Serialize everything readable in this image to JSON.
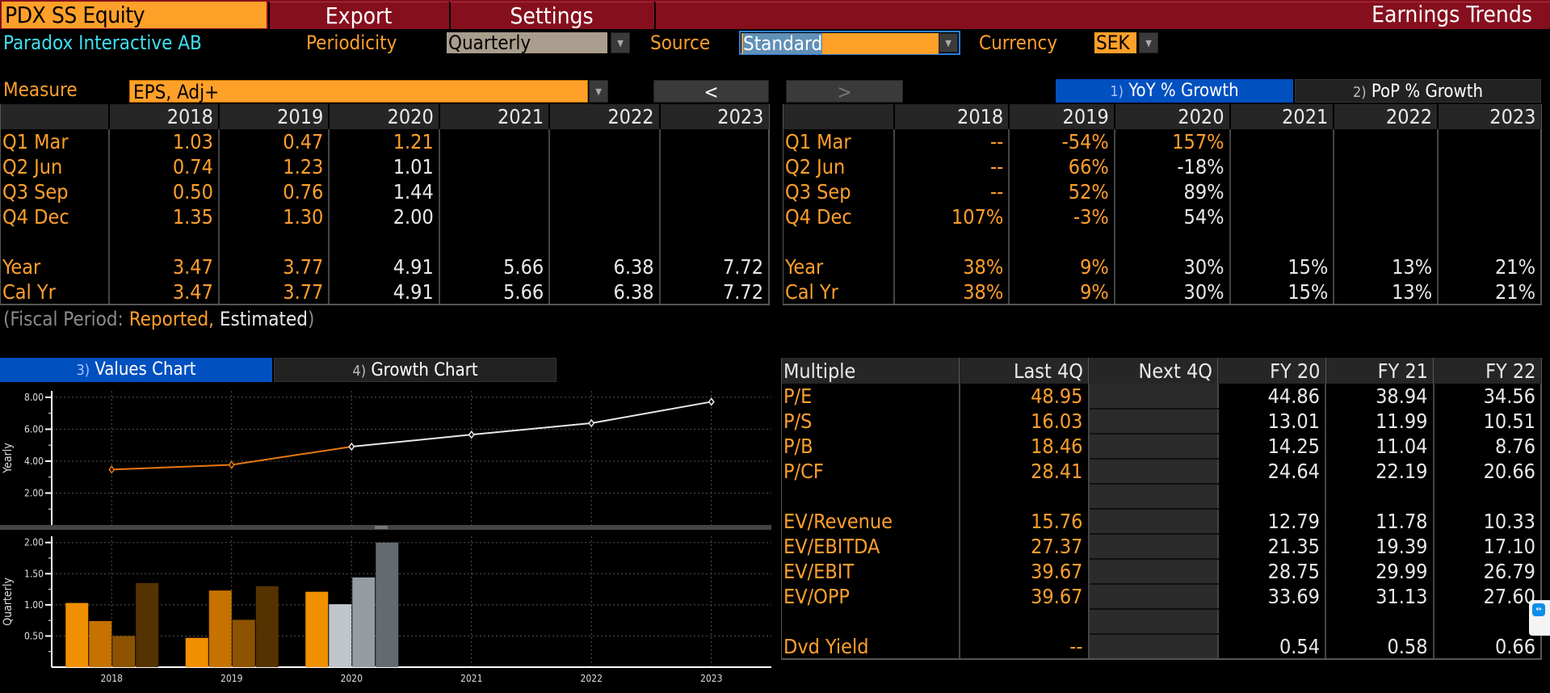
{
  "topbar": {
    "ticker": "PDX SS Equity",
    "export_label": "Export",
    "settings_label": "Settings",
    "app_title": "Earnings Trends"
  },
  "filters": {
    "company": "Paradox Interactive AB",
    "periodicity_label": "Periodicity",
    "periodicity_value": "Quarterly",
    "source_label": "Source",
    "source_value": "Standard",
    "currency_label": "Currency",
    "currency_value": "SEK",
    "dropdown_arrow": "▼"
  },
  "measure": {
    "label": "Measure",
    "value": "EPS, Adj+",
    "prev_label": "<",
    "next_label": ">"
  },
  "growth_tabs": [
    {
      "num": "1)",
      "label": "YoY % Growth",
      "active": true
    },
    {
      "num": "2)",
      "label": "PoP % Growth",
      "active": false
    }
  ],
  "values_table": {
    "years": [
      "2018",
      "2019",
      "2020",
      "2021",
      "2022",
      "2023"
    ],
    "rows": [
      {
        "label": "Q1 Mar",
        "cells": [
          "1.03",
          "0.47",
          "1.21",
          "",
          "",
          ""
        ],
        "styles": [
          "or",
          "or",
          "or",
          "",
          "",
          ""
        ]
      },
      {
        "label": "Q2 Jun",
        "cells": [
          "0.74",
          "1.23",
          "1.01",
          "",
          "",
          ""
        ],
        "styles": [
          "or",
          "or",
          "wh",
          "",
          "",
          ""
        ]
      },
      {
        "label": "Q3 Sep",
        "cells": [
          "0.50",
          "0.76",
          "1.44",
          "",
          "",
          ""
        ],
        "styles": [
          "or",
          "or",
          "wh",
          "",
          "",
          ""
        ]
      },
      {
        "label": "Q4 Dec",
        "cells": [
          "1.35",
          "1.30",
          "2.00",
          "",
          "",
          ""
        ],
        "styles": [
          "or",
          "or",
          "wh",
          "",
          "",
          ""
        ]
      },
      {
        "label": "",
        "cells": [
          "",
          "",
          "",
          "",
          "",
          ""
        ],
        "styles": [
          "",
          "",
          "",
          "",
          "",
          ""
        ]
      },
      {
        "label": "Year",
        "cells": [
          "3.47",
          "3.77",
          "4.91",
          "5.66",
          "6.38",
          "7.72"
        ],
        "styles": [
          "or",
          "or",
          "wh",
          "wh",
          "wh",
          "wh"
        ]
      },
      {
        "label": "Cal Yr",
        "cells": [
          "3.47",
          "3.77",
          "4.91",
          "5.66",
          "6.38",
          "7.72"
        ],
        "styles": [
          "or",
          "or",
          "wh",
          "wh",
          "wh",
          "wh"
        ]
      }
    ]
  },
  "growth_table": {
    "years": [
      "2018",
      "2019",
      "2020",
      "2021",
      "2022",
      "2023"
    ],
    "rows": [
      {
        "label": "Q1 Mar",
        "cells": [
          "--",
          "-54%",
          "157%",
          "",
          "",
          ""
        ],
        "styles": [
          "or",
          "or",
          "or",
          "",
          "",
          ""
        ]
      },
      {
        "label": "Q2 Jun",
        "cells": [
          "--",
          "66%",
          "-18%",
          "",
          "",
          ""
        ],
        "styles": [
          "or",
          "or",
          "wh",
          "",
          "",
          ""
        ]
      },
      {
        "label": "Q3 Sep",
        "cells": [
          "--",
          "52%",
          "89%",
          "",
          "",
          ""
        ],
        "styles": [
          "or",
          "or",
          "wh",
          "",
          "",
          ""
        ]
      },
      {
        "label": "Q4 Dec",
        "cells": [
          "107%",
          "-3%",
          "54%",
          "",
          "",
          ""
        ],
        "styles": [
          "or",
          "or",
          "wh",
          "",
          "",
          ""
        ]
      },
      {
        "label": "",
        "cells": [
          "",
          "",
          "",
          "",
          "",
          ""
        ],
        "styles": [
          "",
          "",
          "",
          "",
          "",
          ""
        ]
      },
      {
        "label": "Year",
        "cells": [
          "38%",
          "9%",
          "30%",
          "15%",
          "13%",
          "21%"
        ],
        "styles": [
          "or",
          "or",
          "wh",
          "wh",
          "wh",
          "wh"
        ]
      },
      {
        "label": "Cal Yr",
        "cells": [
          "38%",
          "9%",
          "30%",
          "15%",
          "13%",
          "21%"
        ],
        "styles": [
          "or",
          "or",
          "wh",
          "wh",
          "wh",
          "wh"
        ]
      }
    ]
  },
  "fiscal_note": {
    "open": "(Fiscal Period: ",
    "reported": "Reported,",
    "estimated": " Estimated",
    "close": ")"
  },
  "chart_tabs": [
    {
      "num": "3)",
      "label": "Values Chart",
      "active": true
    },
    {
      "num": "4)",
      "label": "Growth Chart",
      "active": false
    }
  ],
  "multiples": {
    "headers": [
      "Multiple",
      "Last 4Q",
      "Next 4Q",
      "FY 20",
      "FY 21",
      "FY 22"
    ],
    "rows": [
      {
        "name": "P/E",
        "last4q": "48.95",
        "next4q": "",
        "fy": [
          "44.86",
          "38.94",
          "34.56"
        ]
      },
      {
        "name": "P/S",
        "last4q": "16.03",
        "next4q": "",
        "fy": [
          "13.01",
          "11.99",
          "10.51"
        ]
      },
      {
        "name": "P/B",
        "last4q": "18.46",
        "next4q": "",
        "fy": [
          "14.25",
          "11.04",
          "8.76"
        ]
      },
      {
        "name": "P/CF",
        "last4q": "28.41",
        "next4q": "",
        "fy": [
          "24.64",
          "22.19",
          "20.66"
        ]
      },
      {
        "name": "",
        "last4q": "",
        "next4q": "",
        "fy": [
          "",
          "",
          ""
        ]
      },
      {
        "name": "EV/Revenue",
        "last4q": "15.76",
        "next4q": "",
        "fy": [
          "12.79",
          "11.78",
          "10.33"
        ]
      },
      {
        "name": "EV/EBITDA",
        "last4q": "27.37",
        "next4q": "",
        "fy": [
          "21.35",
          "19.39",
          "17.10"
        ]
      },
      {
        "name": "EV/EBIT",
        "last4q": "39.67",
        "next4q": "",
        "fy": [
          "28.75",
          "29.99",
          "26.79"
        ]
      },
      {
        "name": "EV/OPP",
        "last4q": "39.67",
        "next4q": "",
        "fy": [
          "33.69",
          "31.13",
          "27.60"
        ]
      },
      {
        "name": "",
        "last4q": "",
        "next4q": "",
        "fy": [
          "",
          "",
          ""
        ]
      },
      {
        "name": "Dvd Yield",
        "last4q": "--",
        "next4q": "",
        "fy": [
          "0.54",
          "0.58",
          "0.66"
        ]
      }
    ]
  },
  "colors": {
    "orange": "#ff9f2e",
    "header_red": "#860f1e",
    "active_blue": "#0050c0",
    "cyan": "#3fe0f2"
  },
  "chart_data": [
    {
      "type": "line",
      "title": "",
      "xlabel": "",
      "ylabel": "Yearly",
      "x": [
        "2018",
        "2019",
        "2020",
        "2021",
        "2022",
        "2023"
      ],
      "series": [
        {
          "name": "Reported",
          "values": [
            3.47,
            3.77,
            4.91,
            null,
            null,
            null
          ],
          "color": "#e8780f"
        },
        {
          "name": "Estimated",
          "values": [
            null,
            null,
            4.91,
            5.66,
            6.38,
            7.72
          ],
          "color": "#e8e8e8"
        }
      ],
      "ylim": [
        0,
        8.4
      ],
      "yticks": [
        2,
        4,
        6,
        8
      ],
      "ytick_labels": [
        "2.00",
        "4.00",
        "6.00",
        "8.00"
      ],
      "grid": true
    },
    {
      "type": "bar",
      "title": "",
      "xlabel": "",
      "ylabel": "Quarterly",
      "categories": [
        "2018",
        "2019",
        "2020",
        "2021",
        "2022",
        "2023"
      ],
      "series": [
        {
          "name": "Q1 Mar",
          "values": [
            1.03,
            0.47,
            1.21,
            null,
            null,
            null
          ]
        },
        {
          "name": "Q2 Jun",
          "values": [
            0.74,
            1.23,
            1.01,
            null,
            null,
            null
          ]
        },
        {
          "name": "Q3 Sep",
          "values": [
            0.5,
            0.76,
            1.44,
            null,
            null,
            null
          ]
        },
        {
          "name": "Q4 Dec",
          "values": [
            1.35,
            1.3,
            2.0,
            null,
            null,
            null
          ]
        }
      ],
      "reported_colors": [
        "#f08f00",
        "#c57200",
        "#8d5300",
        "#553300"
      ],
      "estimated_colors": [
        "#f08f00",
        "#bfc6cc",
        "#959ca2",
        "#636b72"
      ],
      "estimated_from": {
        "category": "2020",
        "quarter_index": 1
      },
      "ylim": [
        0,
        2.1
      ],
      "yticks": [
        0.5,
        1.0,
        1.5,
        2.0
      ],
      "ytick_labels": [
        "0.50",
        "1.00",
        "1.50",
        "2.00"
      ],
      "grid": true
    }
  ]
}
